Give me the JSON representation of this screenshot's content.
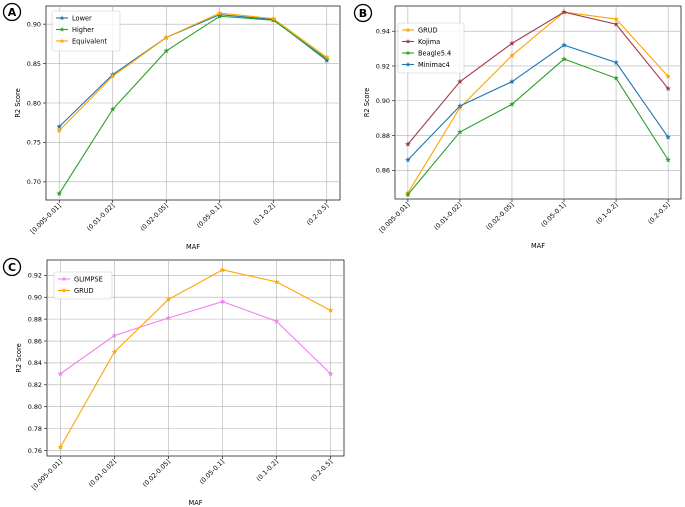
{
  "chart_data": [
    {
      "panel": "A",
      "type": "line",
      "xlabel": "MAF",
      "ylabel": "R2 Score",
      "categories": [
        "[0.005-0.01]",
        "(0.01-0.02]",
        "(0.02-0.05]",
        "(0.05-0.1]",
        "(0.1-0.2]",
        "(0.2-0.5]"
      ],
      "ylim": [
        0.677,
        0.923
      ],
      "yticks": [
        "0.70",
        "0.75",
        "0.80",
        "0.85",
        "0.90"
      ],
      "grid": true,
      "legend_position": "top-left",
      "series": [
        {
          "name": "Lower",
          "color": "#1f77b4",
          "marker": "star",
          "values": [
            0.77,
            0.836,
            0.883,
            0.912,
            0.906,
            0.854
          ]
        },
        {
          "name": "Higher",
          "color": "#2ca02c",
          "marker": "star",
          "values": [
            0.685,
            0.792,
            0.866,
            0.91,
            0.905,
            0.856
          ]
        },
        {
          "name": "Equivalent",
          "color": "#ffa500",
          "marker": "star",
          "values": [
            0.765,
            0.834,
            0.883,
            0.914,
            0.907,
            0.858
          ]
        }
      ]
    },
    {
      "panel": "B",
      "type": "line",
      "xlabel": "MAF",
      "ylabel": "R2 Score",
      "categories": [
        "[0.005-0.01]",
        "(0.01-0.02]",
        "(0.02-0.05]",
        "(0.05-0.1]",
        "(0.1-0.2]",
        "(0.2-0.5]"
      ],
      "ylim": [
        0.8435,
        0.9545
      ],
      "yticks": [
        "0.86",
        "0.88",
        "0.90",
        "0.92",
        "0.94"
      ],
      "grid": true,
      "legend_position": "top-left",
      "series": [
        {
          "name": "GRUD",
          "color": "#ffa500",
          "marker": "star",
          "values": [
            0.847,
            0.896,
            0.926,
            0.951,
            0.947,
            0.914
          ]
        },
        {
          "name": "Kojima",
          "color": "#a23a4a",
          "marker": "star",
          "values": [
            0.875,
            0.911,
            0.933,
            0.951,
            0.944,
            0.907
          ]
        },
        {
          "name": "Beagle5.4",
          "color": "#2ca02c",
          "marker": "star",
          "values": [
            0.846,
            0.882,
            0.898,
            0.924,
            0.913,
            0.866
          ]
        },
        {
          "name": "Minimac4",
          "color": "#1f77b4",
          "marker": "star",
          "values": [
            0.866,
            0.897,
            0.911,
            0.932,
            0.922,
            0.879
          ]
        }
      ]
    },
    {
      "panel": "C",
      "type": "line",
      "xlabel": "MAF",
      "ylabel": "R2 Score",
      "categories": [
        "[0.005-0.01]",
        "(0.01-0.02]",
        "(0.02-0.05]",
        "(0.05-0.1]",
        "(0.1-0.2]",
        "(0.2-0.5]"
      ],
      "ylim": [
        0.755,
        0.934
      ],
      "yticks": [
        "0.76",
        "0.78",
        "0.80",
        "0.82",
        "0.84",
        "0.86",
        "0.88",
        "0.90",
        "0.92"
      ],
      "grid": true,
      "legend_position": "top-left",
      "series": [
        {
          "name": "GLIMPSE",
          "color": "#ee82ee",
          "marker": "star",
          "values": [
            0.83,
            0.865,
            0.881,
            0.896,
            0.878,
            0.83
          ]
        },
        {
          "name": "GRUD",
          "color": "#ffa500",
          "marker": "star",
          "values": [
            0.763,
            0.85,
            0.898,
            0.925,
            0.914,
            0.888
          ]
        }
      ]
    }
  ]
}
